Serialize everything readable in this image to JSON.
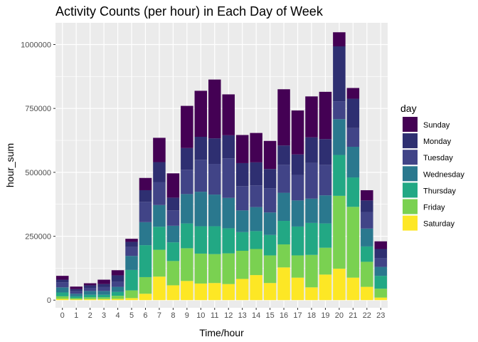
{
  "chart_data": {
    "type": "bar",
    "stacked": true,
    "title": "Activity Counts (per hour) in Each Day of Week",
    "xlabel": "Time/hour",
    "ylabel": "hour_sum",
    "ylim": [
      -30000,
      1085000
    ],
    "y_ticks": [
      0,
      250000,
      500000,
      750000,
      1000000
    ],
    "y_tick_labels": [
      "0",
      "250000",
      "500000",
      "750000",
      "1000000"
    ],
    "categories": [
      "0",
      "1",
      "2",
      "3",
      "4",
      "5",
      "6",
      "7",
      "8",
      "9",
      "10",
      "11",
      "12",
      "13",
      "14",
      "15",
      "16",
      "17",
      "18",
      "19",
      "20",
      "21",
      "22",
      "23"
    ],
    "legend_title": "day",
    "legend_position": "right",
    "grid": true,
    "series": [
      {
        "name": "Saturday",
        "color": "#FDE725",
        "values": [
          5000,
          3000,
          4000,
          4000,
          5000,
          8000,
          25000,
          92000,
          58000,
          75000,
          65000,
          67000,
          63000,
          83000,
          98000,
          67000,
          128000,
          88000,
          50000,
          100000,
          123000,
          88000,
          52000,
          10000
        ]
      },
      {
        "name": "Friday",
        "color": "#7AD151",
        "values": [
          10000,
          5000,
          7000,
          7000,
          12000,
          30000,
          65000,
          105000,
          95000,
          128000,
          117000,
          113000,
          120000,
          110000,
          102000,
          108000,
          90000,
          87000,
          127000,
          105000,
          285000,
          277000,
          98000,
          35000
        ]
      },
      {
        "name": "Thursday",
        "color": "#22A884",
        "values": [
          15000,
          7000,
          10000,
          10000,
          15000,
          80000,
          125000,
          90000,
          73000,
          97000,
          107000,
          109000,
          98000,
          73000,
          70000,
          80000,
          92000,
          113000,
          125000,
          95000,
          160000,
          115000,
          60000,
          50000
        ]
      },
      {
        "name": "Wednesday",
        "color": "#2A788E",
        "values": [
          20000,
          10000,
          15000,
          15000,
          20000,
          55000,
          90000,
          85000,
          65000,
          115000,
          135000,
          124000,
          119000,
          85000,
          94000,
          88000,
          110000,
          102000,
          95000,
          110000,
          140000,
          120000,
          70000,
          35000
        ]
      },
      {
        "name": "Tuesday",
        "color": "#414487",
        "values": [
          20000,
          10000,
          12000,
          15000,
          20000,
          35000,
          80000,
          90000,
          60000,
          95000,
          125000,
          120000,
          155000,
          95000,
          85000,
          95000,
          110000,
          100000,
          140000,
          120000,
          70000,
          73000,
          65000,
          35000
        ]
      },
      {
        "name": "Monday",
        "color": "#2E2F71",
        "values": [
          10000,
          8000,
          10000,
          12000,
          25000,
          20000,
          45000,
          78000,
          50000,
          85000,
          90000,
          100000,
          90000,
          90000,
          90000,
          75000,
          75000,
          80000,
          100000,
          100000,
          215000,
          115000,
          45000,
          35000
        ]
      },
      {
        "name": "Sunday",
        "color": "#440154",
        "values": [
          15000,
          10000,
          8000,
          17000,
          20000,
          12000,
          48000,
          95000,
          95000,
          165000,
          180000,
          230000,
          160000,
          110000,
          115000,
          110000,
          220000,
          172000,
          160000,
          185000,
          55000,
          42000,
          40000,
          30000
        ]
      }
    ]
  }
}
